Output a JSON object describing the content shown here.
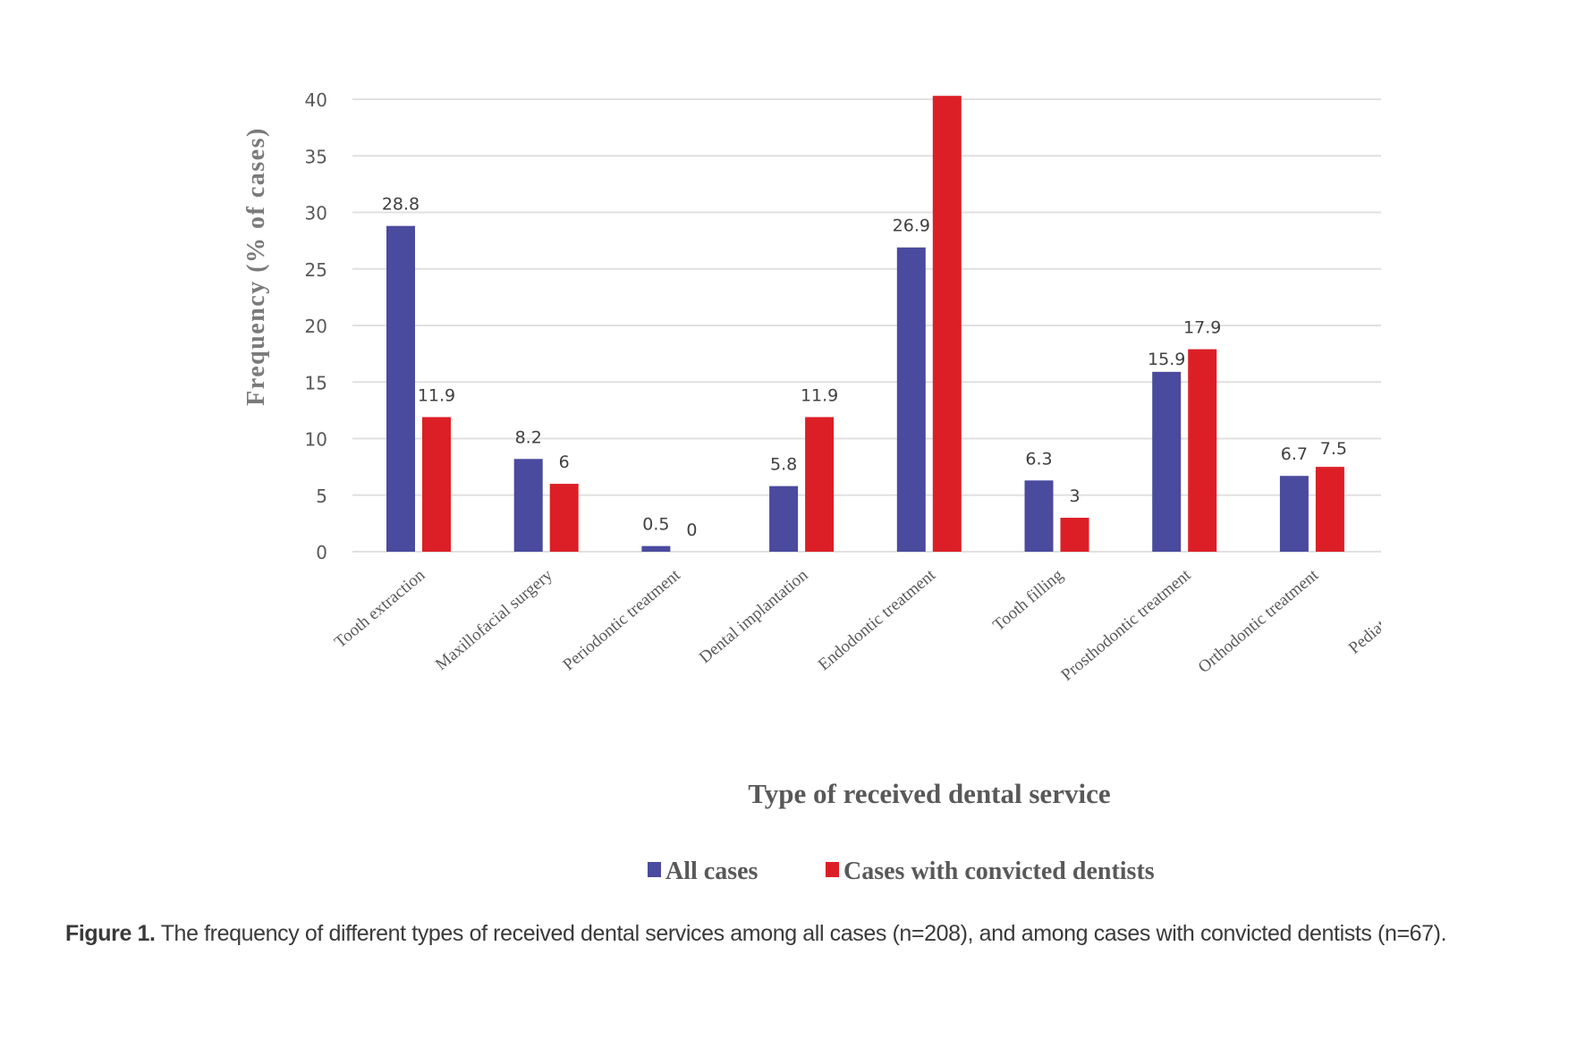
{
  "chart_data": {
    "type": "bar",
    "title": "",
    "xlabel": "Type of received dental service",
    "ylabel": "Frequency (% of cases)",
    "ylim": [
      0,
      40
    ],
    "yticks": [
      0,
      5,
      10,
      15,
      20,
      25,
      30,
      35,
      40
    ],
    "grid": true,
    "legend_position": "bottom",
    "categories": [
      "Tooth extraction",
      "Maxillofacial surgery",
      "Periodontic treatment",
      "Dental implantation",
      "Endodontic treatment",
      "Tooth filling",
      "Prosthodontic treatment",
      "Orthodontic treatment",
      "Pediatric dental tr"
    ],
    "series": [
      {
        "name": "All cases",
        "color": "#4a4a9e",
        "values": [
          28.8,
          8.2,
          0.5,
          5.8,
          26.9,
          6.3,
          15.9,
          6.7,
          null
        ],
        "labels": [
          "28.8",
          "8.2",
          "0.5",
          "5.8",
          "26.9",
          "6.3",
          "15.9",
          "6.7",
          null
        ]
      },
      {
        "name": "Cases with convicted dentists",
        "color": "#dc1f26",
        "values": [
          11.9,
          6,
          0,
          11.9,
          40.3,
          3,
          17.9,
          7.5,
          null
        ],
        "labels": [
          "11.9",
          "6",
          "0",
          "11.9",
          null,
          "3",
          "17.9",
          "7.5",
          null
        ]
      }
    ]
  },
  "caption": {
    "label": "Figure 1.",
    "text": " The frequency of different types of received dental services among all cases (n=208), and among cases with convicted dentists (n=67)."
  }
}
